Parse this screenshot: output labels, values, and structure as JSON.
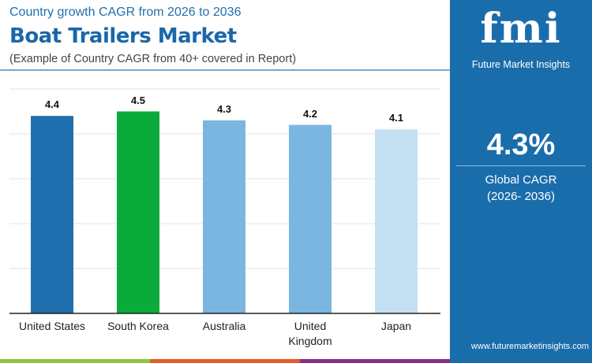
{
  "header": {
    "subtitle": "Country growth CAGR from 2026 to 2036",
    "title": "Boat Trailers Market",
    "note": "(Example of Country CAGR from 40+ covered in Report)"
  },
  "panel": {
    "logo": "fmi",
    "logo_text": "Future Market Insights",
    "value": "4.3%",
    "label": "Global CAGR",
    "period": "(2026- 2036)",
    "url": "www.futuremarketinsights.com",
    "bg": "#1a6dab"
  },
  "chart_data": {
    "type": "bar",
    "categories": [
      "United States",
      "South Korea",
      "Australia",
      "United Kingdom",
      "Japan"
    ],
    "values": [
      4.4,
      4.5,
      4.3,
      4.2,
      4.1
    ],
    "colors": [
      "#1f6fae",
      "#0aab3a",
      "#7ab6e0",
      "#7ab6e0",
      "#c4e1f3"
    ],
    "ylim": [
      0,
      5
    ],
    "grid": true,
    "xlabel": "",
    "ylabel": ""
  }
}
